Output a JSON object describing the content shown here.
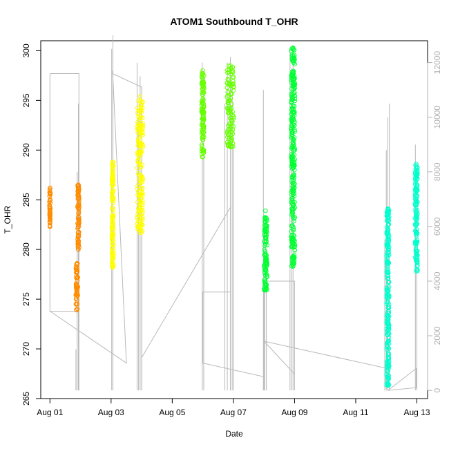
{
  "chart_data": {
    "type": "scatter",
    "title": "ATOM1 Southbound T_OHR",
    "xlabel": "Date",
    "ylabel": "T_OHR",
    "x_unit": "days",
    "x_ticks": [
      {
        "value": 1,
        "label": "Aug 01"
      },
      {
        "value": 3,
        "label": "Aug 03"
      },
      {
        "value": 5,
        "label": "Aug 05"
      },
      {
        "value": 7,
        "label": "Aug 07"
      },
      {
        "value": 9,
        "label": "Aug 09"
      },
      {
        "value": 11,
        "label": "Aug 11"
      },
      {
        "value": 13,
        "label": "Aug 13"
      }
    ],
    "xlim": [
      0.7,
      13.35
    ],
    "ylim": [
      265,
      301
    ],
    "y_ticks": [
      265,
      270,
      275,
      280,
      285,
      290,
      295,
      300
    ],
    "y2lim": [
      -300,
      12800
    ],
    "y2_ticks": [
      0,
      2000,
      4000,
      6000,
      8000,
      10000,
      12000
    ],
    "y2_color": "#b0b0b0",
    "series": [
      {
        "color": "#ff8c00",
        "clusters": [
          {
            "x": 1.0,
            "xw": 0.03,
            "ymin": 282.3,
            "ymax": 286.2
          },
          {
            "x": 1.88,
            "xw": 0.07,
            "ymin": 273.9,
            "ymax": 278.6
          },
          {
            "x": 1.93,
            "xw": 0.05,
            "ymin": 280.0,
            "ymax": 286.5
          }
        ]
      },
      {
        "color": "#ffff00",
        "clusters": [
          {
            "x": 3.05,
            "xw": 0.05,
            "ymin": 278.2,
            "ymax": 288.8
          },
          {
            "x": 3.95,
            "xw": 0.18,
            "ymin": 281.7,
            "ymax": 295.4
          }
        ]
      },
      {
        "color": "#66ff00",
        "clusters": [
          {
            "x": 6.0,
            "xw": 0.08,
            "ymin": 289.3,
            "ymax": 298.0
          },
          {
            "x": 6.9,
            "xw": 0.22,
            "ymin": 290.3,
            "ymax": 298.5
          }
        ]
      },
      {
        "color": "#00ff33",
        "clusters": [
          {
            "x": 8.05,
            "xw": 0.1,
            "ymin": 275.9,
            "ymax": 283.9
          },
          {
            "x": 8.95,
            "xw": 0.12,
            "ymin": 278.3,
            "ymax": 300.3
          }
        ]
      },
      {
        "color": "#00ffcc",
        "clusters": [
          {
            "x": 12.05,
            "xw": 0.08,
            "ymin": 266.3,
            "ymax": 284.1
          },
          {
            "x": 12.98,
            "xw": 0.08,
            "ymin": 277.8,
            "ymax": 288.6
          }
        ]
      }
    ],
    "secondary_series": {
      "color": "#b8b8b8",
      "spikes": [
        {
          "x": 1.85,
          "ymax": 1500
        },
        {
          "x": 1.89,
          "ymax": 8000
        },
        {
          "x": 1.93,
          "ymax": 10500
        },
        {
          "x": 3.02,
          "ymax": 12500
        },
        {
          "x": 3.06,
          "ymax": 13000
        },
        {
          "x": 3.85,
          "ymax": 12000
        },
        {
          "x": 3.9,
          "ymax": 10000
        },
        {
          "x": 3.95,
          "ymax": 11500
        },
        {
          "x": 4.0,
          "ymax": 8000
        },
        {
          "x": 5.98,
          "ymax": 12000
        },
        {
          "x": 6.03,
          "ymax": 11500
        },
        {
          "x": 6.72,
          "ymax": 10500
        },
        {
          "x": 6.8,
          "ymax": 12000
        },
        {
          "x": 6.9,
          "ymax": 12200
        },
        {
          "x": 6.96,
          "ymax": 11000
        },
        {
          "x": 7.0,
          "ymax": 9000
        },
        {
          "x": 7.98,
          "ymax": 11000
        },
        {
          "x": 8.03,
          "ymax": 6000
        },
        {
          "x": 8.08,
          "ymax": 4500
        },
        {
          "x": 8.85,
          "ymax": 12500
        },
        {
          "x": 8.9,
          "ymax": 11800
        },
        {
          "x": 8.95,
          "ymax": 12000
        },
        {
          "x": 11.95,
          "ymax": 5500
        },
        {
          "x": 12.0,
          "ymax": 8800
        },
        {
          "x": 12.05,
          "ymax": 10000
        },
        {
          "x": 12.1,
          "ymax": 10500
        },
        {
          "x": 12.95,
          "ymax": 9000
        },
        {
          "x": 13.0,
          "ymax": 7000
        }
      ],
      "path": [
        [
          1.0,
          11600
        ],
        [
          1.95,
          11600
        ],
        [
          1.95,
          0
        ],
        [
          1.95,
          2900
        ],
        [
          1.0,
          2900
        ],
        [
          1.0,
          11600
        ],
        [
          1.0,
          2900
        ],
        [
          3.5,
          1000
        ],
        [
          3.05,
          11700
        ],
        [
          3.05,
          11600
        ],
        [
          4.0,
          11100
        ],
        [
          4.0,
          0
        ],
        [
          4.0,
          1200
        ],
        [
          6.9,
          6700
        ],
        [
          6.9,
          0
        ],
        [
          6.9,
          3600
        ],
        [
          6.0,
          3600
        ],
        [
          6.0,
          1000
        ],
        [
          8.0,
          500
        ],
        [
          8.0,
          0
        ],
        [
          8.0,
          2900
        ],
        [
          8.0,
          4000
        ],
        [
          9.0,
          4000
        ],
        [
          9.0,
          0
        ],
        [
          9.0,
          600
        ],
        [
          8.0,
          1800
        ],
        [
          12.05,
          800
        ],
        [
          12.05,
          0
        ],
        [
          12.98,
          800
        ],
        [
          12.98,
          100
        ],
        [
          12.05,
          0
        ]
      ]
    }
  }
}
